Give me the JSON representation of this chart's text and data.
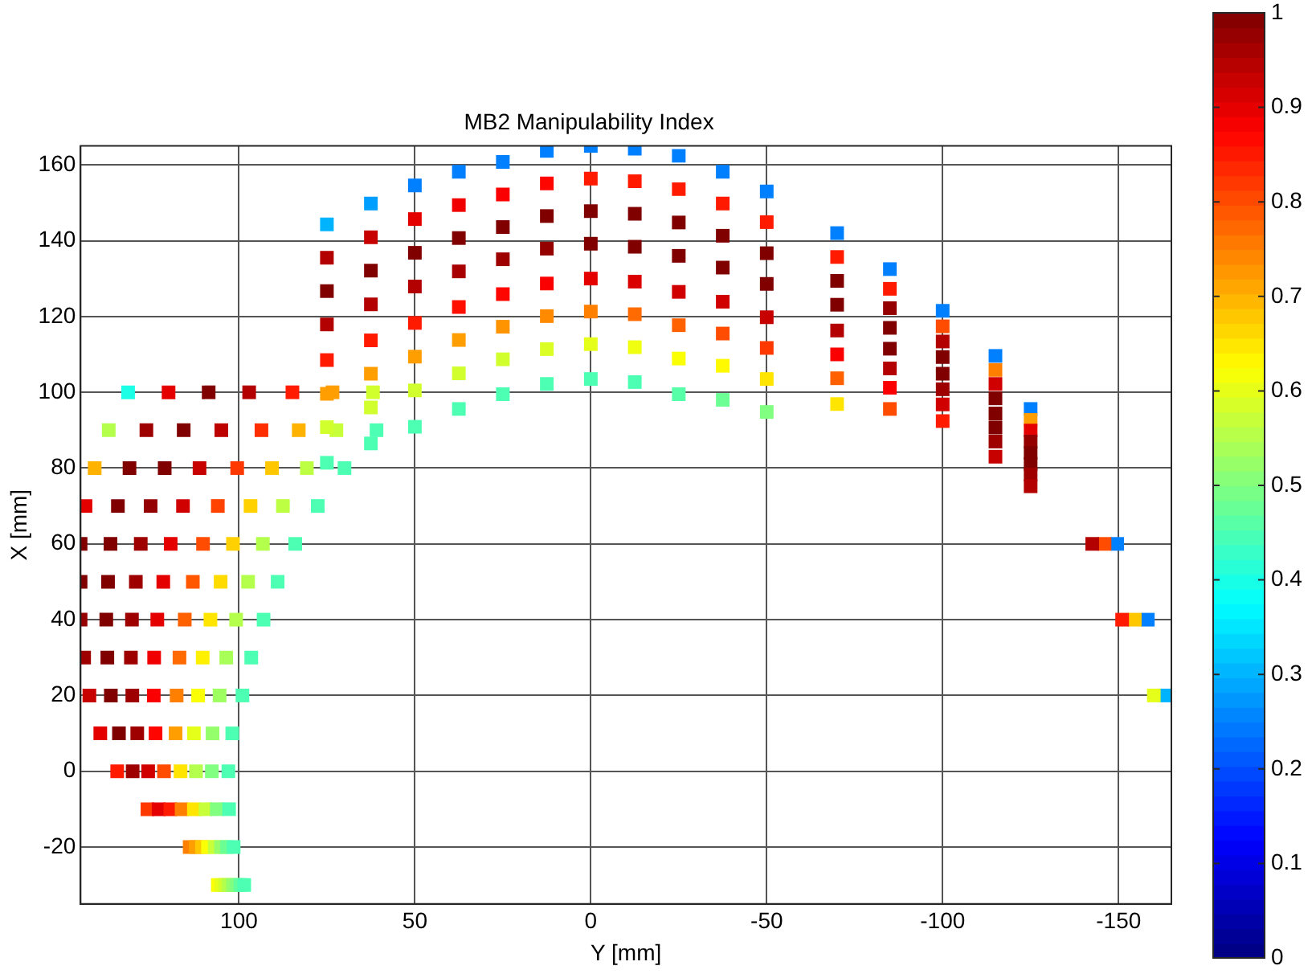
{
  "chart_data": {
    "type": "scatter",
    "title": "MB2 Manipulability Index",
    "xlabel": "Y [mm]",
    "ylabel": "X [mm]",
    "xlim": [
      145,
      -165
    ],
    "ylim": [
      -35,
      165
    ],
    "xticks": [
      100,
      50,
      0,
      -50,
      -100,
      -150
    ],
    "yticks": [
      -20,
      0,
      20,
      40,
      60,
      80,
      100,
      120,
      140,
      160
    ],
    "clim": [
      0,
      1
    ],
    "cticks": [
      0,
      0.1,
      0.2,
      0.3,
      0.4,
      0.5,
      0.6,
      0.7,
      0.8,
      0.9,
      1
    ],
    "grid": true,
    "marker": "square",
    "x": [
      106,
      105,
      103.9,
      102.9,
      101.7,
      100.7,
      99.6,
      98.5,
      114,
      112.3,
      110.5,
      108.8,
      106.9,
      105.1,
      103.4,
      101.5,
      126,
      122.8,
      119.5,
      116.3,
      112.8,
      109.5,
      106.3,
      102.8,
      134.6,
      130.2,
      125.8,
      121.3,
      116.6,
      112.2,
      107.7,
      103,
      139.4,
      134.1,
      128.9,
      123.7,
      118,
      112.8,
      107.5,
      101.9,
      142.5,
      136.4,
      130.3,
      124.2,
      117.7,
      111.6,
      105.5,
      99,
      144,
      137.4,
      130.7,
      124.1,
      116.9,
      110.3,
      103.6,
      96.5,
      145,
      137.7,
      130.4,
      123.2,
      115.4,
      108.1,
      100.8,
      93,
      145,
      137.2,
      129.3,
      121.5,
      113.1,
      105.2,
      97.4,
      89,
      145,
      136.5,
      127.9,
      119.4,
      110.2,
      101.7,
      93.2,
      84,
      143.6,
      134.4,
      125.1,
      115.9,
      106,
      96.7,
      87.5,
      77.6,
      141,
      131.1,
      121.1,
      111.2,
      100.5,
      90.6,
      80.7,
      70,
      137,
      126.3,
      115.7,
      105,
      93.6,
      83,
      72.3,
      60.9,
      131.5,
      120,
      108.6,
      97.1,
      84.8,
      73.4,
      61.9,
      75,
      75,
      75,
      75,
      75,
      75,
      75,
      75,
      62.5,
      62.5,
      62.5,
      62.5,
      62.5,
      62.5,
      62.5,
      62.5,
      50,
      50,
      50,
      50,
      50,
      50,
      50,
      50,
      37.5,
      37.5,
      37.5,
      37.5,
      37.5,
      37.5,
      37.5,
      37.5,
      25,
      25,
      25,
      25,
      25,
      25,
      25,
      25,
      12.5,
      12.5,
      12.5,
      12.5,
      12.5,
      12.5,
      12.5,
      12.5,
      0,
      0,
      0,
      0,
      0,
      0,
      0,
      0,
      -12.5,
      -12.5,
      -12.5,
      -12.5,
      -12.5,
      -12.5,
      -12.5,
      -12.5,
      -25,
      -25,
      -25,
      -25,
      -25,
      -25,
      -25,
      -25,
      -37.5,
      -37.5,
      -37.5,
      -37.5,
      -37.5,
      -37.5,
      -37.5,
      -37.5,
      -50,
      -50,
      -50,
      -50,
      -50,
      -50,
      -50,
      -50,
      -70,
      -70,
      -70,
      -70,
      -70,
      -70,
      -70,
      -70,
      -85,
      -85,
      -85,
      -85,
      -85,
      -85,
      -85,
      -85,
      -100,
      -100,
      -100,
      -100,
      -100,
      -100,
      -100,
      -100,
      -115,
      -115,
      -115,
      -115,
      -115,
      -115,
      -115,
      -115,
      -125,
      -125,
      -125,
      -125,
      -125,
      -125,
      -125,
      -125,
      -149.6,
      -146,
      -142.5,
      -158.3,
      -154.6,
      -151,
      -163,
      -160
    ],
    "values": [
      -30,
      -30,
      -30,
      -30,
      -30,
      -30,
      -30,
      -30,
      -20,
      -20,
      -20,
      -20,
      -20,
      -20,
      -20,
      -20,
      -10,
      -10,
      -10,
      -10,
      -10,
      -10,
      -10,
      -10,
      0,
      0,
      0,
      0,
      0,
      0,
      0,
      0,
      10,
      10,
      10,
      10,
      10,
      10,
      10,
      10,
      20,
      20,
      20,
      20,
      20,
      20,
      20,
      20,
      30,
      30,
      30,
      30,
      30,
      30,
      30,
      30,
      40,
      40,
      40,
      40,
      40,
      40,
      40,
      40,
      50,
      50,
      50,
      50,
      50,
      50,
      50,
      50,
      60,
      60,
      60,
      60,
      60,
      60,
      60,
      60,
      70,
      70,
      70,
      70,
      70,
      70,
      70,
      70,
      80,
      80,
      80,
      80,
      80,
      80,
      80,
      80,
      90,
      90,
      90,
      90,
      90,
      90,
      90,
      90,
      100,
      100,
      100,
      100,
      100,
      100,
      100,
      144.3,
      135.5,
      126.7,
      117.9,
      108.5,
      99.6,
      90.8,
      81.4,
      149.8,
      140.9,
      132.1,
      123.2,
      113.7,
      104.9,
      96,
      86.5,
      154.6,
      145.7,
      136.8,
      127.9,
      118.3,
      109.4,
      100.5,
      90.9,
      158.2,
      149.4,
      140.7,
      131.9,
      122.5,
      113.8,
      105,
      95.6,
      160.8,
      152.2,
      143.6,
      135.1,
      125.9,
      117.3,
      108.7,
      99.5,
      163.7,
      155.1,
      146.5,
      137.9,
      128.7,
      120.1,
      111.4,
      102.2,
      165,
      156.4,
      147.8,
      139.2,
      130,
      121.3,
      112.7,
      103.5,
      164.3,
      155.7,
      147.1,
      138.4,
      129.2,
      120.6,
      111.9,
      102.7,
      162.4,
      153.6,
      144.8,
      136,
      126.5,
      117.7,
      108.9,
      99.5,
      158.2,
      149.8,
      141.3,
      132.9,
      123.9,
      115.5,
      107,
      98,
      153,
      144.9,
      136.7,
      128.6,
      119.8,
      111.7,
      103.5,
      94.8,
      142,
      135.7,
      129.4,
      123.1,
      116.3,
      110,
      103.7,
      96.9,
      132.5,
      127.3,
      122.2,
      117,
      111.5,
      106.3,
      101.2,
      95.6,
      121.5,
      117.4,
      113.4,
      109.3,
      104.9,
      100.8,
      96.8,
      92.4,
      109.6,
      105.9,
      102.2,
      98.4,
      94.4,
      90.7,
      87,
      83,
      95.6,
      92.7,
      89.9,
      87,
      84,
      81.1,
      78.3,
      75.2,
      60,
      60,
      60,
      40,
      40,
      40,
      20,
      20
    ],
    "cvalues": [
      0.62,
      0.6,
      0.58,
      0.55,
      0.52,
      0.5,
      0.47,
      0.45,
      0.75,
      0.72,
      0.68,
      0.62,
      0.57,
      0.52,
      0.48,
      0.45,
      0.82,
      0.9,
      0.85,
      0.75,
      0.65,
      0.57,
      0.5,
      0.45,
      0.85,
      0.97,
      0.92,
      0.8,
      0.65,
      0.55,
      0.5,
      0.45,
      0.9,
      1,
      0.97,
      0.87,
      0.72,
      0.6,
      0.52,
      0.45,
      0.93,
      1,
      0.97,
      0.88,
      0.75,
      0.62,
      0.53,
      0.45,
      0.97,
      1,
      0.97,
      0.89,
      0.77,
      0.64,
      0.54,
      0.45,
      0.98,
      1,
      0.97,
      0.9,
      0.78,
      0.65,
      0.55,
      0.45,
      1,
      1,
      0.97,
      0.9,
      0.79,
      0.66,
      0.55,
      0.45,
      1,
      1,
      0.97,
      0.9,
      0.8,
      0.67,
      0.55,
      0.45,
      0.9,
      1,
      0.98,
      0.92,
      0.81,
      0.67,
      0.56,
      0.45,
      0.7,
      1,
      1,
      0.93,
      0.82,
      0.68,
      0.56,
      0.45,
      0.55,
      0.97,
      1,
      0.94,
      0.83,
      0.7,
      0.57,
      0.45,
      0.4,
      0.9,
      1,
      0.95,
      0.85,
      0.72,
      0.58,
      0.3,
      0.95,
      1,
      0.95,
      0.85,
      0.72,
      0.58,
      0.45,
      0.28,
      0.93,
      1,
      0.95,
      0.85,
      0.72,
      0.58,
      0.45,
      0.25,
      0.9,
      1,
      0.95,
      0.85,
      0.72,
      0.58,
      0.45,
      0.25,
      0.89,
      1,
      0.96,
      0.86,
      0.72,
      0.58,
      0.45,
      0.25,
      0.88,
      1,
      0.97,
      0.87,
      0.73,
      0.58,
      0.45,
      0.25,
      0.87,
      1,
      0.98,
      0.88,
      0.74,
      0.59,
      0.45,
      0.25,
      0.85,
      1,
      1,
      0.9,
      0.75,
      0.6,
      0.45,
      0.25,
      0.85,
      1,
      1,
      0.91,
      0.77,
      0.61,
      0.45,
      0.25,
      0.85,
      1,
      1,
      0.92,
      0.78,
      0.62,
      0.46,
      0.25,
      0.85,
      1,
      1,
      0.92,
      0.8,
      0.63,
      0.48,
      0.25,
      0.85,
      1,
      1,
      0.93,
      0.82,
      0.65,
      0.5,
      0.25,
      0.85,
      1,
      1,
      0.95,
      0.88,
      0.78,
      0.65,
      0.25,
      0.85,
      0.98,
      1,
      1,
      0.95,
      0.88,
      0.8,
      0.25,
      0.8,
      0.95,
      1,
      1,
      0.97,
      0.92,
      0.85,
      0.25,
      0.75,
      0.92,
      1,
      1,
      1,
      0.97,
      0.93,
      0.25,
      0.72,
      0.9,
      0.98,
      1,
      1,
      0.97,
      0.95,
      0.25,
      0.8,
      0.95,
      0.25,
      0.68,
      0.85,
      0.3,
      0.6
    ]
  }
}
